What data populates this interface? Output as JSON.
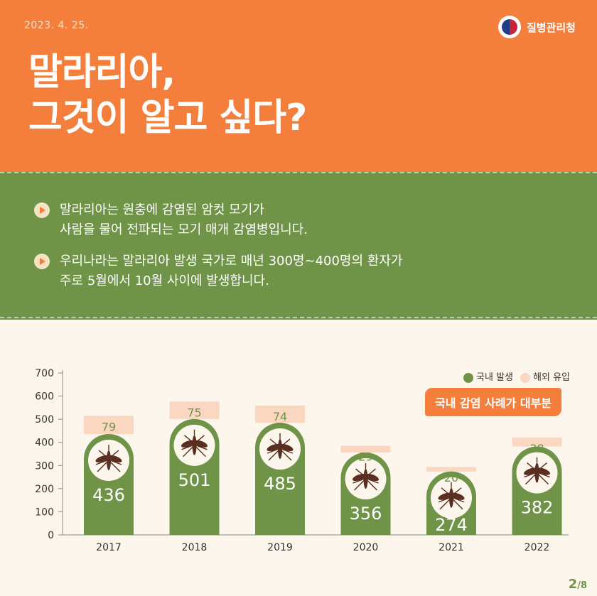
{
  "header": {
    "date": "2023. 4. 25.",
    "agency": "질병관리청",
    "title_line1": "말라리아,",
    "title_line2": "그것이 알고 싶다?"
  },
  "bullets": [
    {
      "line1": "말라리아는 원충에 감염된 암컷 모기가",
      "line2": "사람을 물어 전파되는 모기 매개 감염병입니다."
    },
    {
      "line1": "우리나라는 말라리아 발생 국가로 매년 300명~400명의 환자가",
      "line2": "주로 5월에서 10월 사이에 발생합니다."
    }
  ],
  "legend": {
    "domestic": "국내 발생",
    "overseas": "해외 유입"
  },
  "badge": "국내 감염 사례가 대부분",
  "page": {
    "current": "2",
    "total": "/8"
  },
  "colors": {
    "domestic": "#6f9448",
    "overseas": "#fbd6c0",
    "accent": "#f47f3c"
  },
  "chart_data": {
    "type": "bar",
    "stacked": true,
    "categories": [
      "2017",
      "2018",
      "2019",
      "2020",
      "2021",
      "2022"
    ],
    "series": [
      {
        "name": "국내 발생",
        "values": [
          436,
          501,
          485,
          356,
          274,
          382
        ]
      },
      {
        "name": "해외 유입",
        "values": [
          79,
          75,
          74,
          29,
          20,
          38
        ]
      }
    ],
    "yticks": [
      0,
      100,
      200,
      300,
      400,
      500,
      600,
      700
    ],
    "ylim": [
      0,
      700
    ],
    "grid": false,
    "legend_position": "top-right"
  }
}
